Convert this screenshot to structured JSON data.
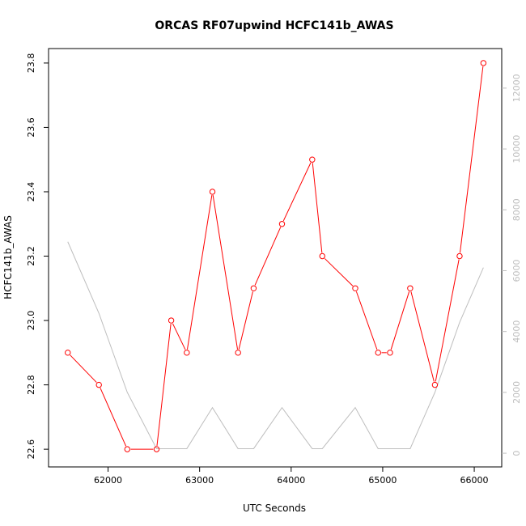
{
  "chart_data": {
    "type": "line",
    "title": "ORCAS RF07upwind HCFC141b_AWAS",
    "xlabel": "UTC Seconds",
    "ylabel": "HCFC141b_AWAS",
    "xlim": [
      61350,
      66300
    ],
    "ylim": [
      22.545,
      23.845
    ],
    "y2lim": [
      -450,
      13300
    ],
    "x_ticks": [
      62000,
      63000,
      64000,
      65000,
      66000
    ],
    "y_ticks": [
      22.6,
      22.8,
      23.0,
      23.2,
      23.4,
      23.6,
      23.8
    ],
    "y2_ticks": [
      0,
      2000,
      4000,
      6000,
      8000,
      10000,
      12000
    ],
    "x_tick_labels": [
      "62000",
      "63000",
      "64000",
      "65000",
      "66000"
    ],
    "y_tick_labels": [
      "22.6",
      "22.8",
      "23.0",
      "23.2",
      "23.4",
      "23.6",
      "23.8"
    ],
    "y2_tick_labels": [
      "0",
      "2000",
      "4000",
      "6000",
      "8000",
      "10000",
      "12000"
    ],
    "grid": false,
    "series": [
      {
        "axis": "left",
        "color": "#ff0000",
        "marker": "open-circle",
        "points": [
          [
            61560,
            22.9
          ],
          [
            61900,
            22.8
          ],
          [
            62210,
            22.6
          ],
          [
            62530,
            22.6
          ],
          [
            62690,
            23.0
          ],
          [
            62860,
            22.9
          ],
          [
            63140,
            23.4
          ],
          [
            63420,
            22.9
          ],
          [
            63590,
            23.1
          ],
          [
            63900,
            23.3
          ],
          [
            64230,
            23.5
          ],
          [
            64340,
            23.2
          ],
          [
            64700,
            23.1
          ],
          [
            64950,
            22.9
          ],
          [
            65080,
            22.9
          ],
          [
            65300,
            23.1
          ],
          [
            65570,
            22.8
          ],
          [
            65840,
            23.2
          ],
          [
            66100,
            23.8
          ]
        ]
      },
      {
        "axis": "right",
        "color": "#bebebe",
        "marker": "none",
        "points": [
          [
            61560,
            6950
          ],
          [
            61900,
            4600
          ],
          [
            62210,
            2000
          ],
          [
            62530,
            150
          ],
          [
            62690,
            150
          ],
          [
            62860,
            150
          ],
          [
            63140,
            1500
          ],
          [
            63420,
            150
          ],
          [
            63590,
            150
          ],
          [
            63900,
            1500
          ],
          [
            64230,
            150
          ],
          [
            64340,
            150
          ],
          [
            64700,
            1500
          ],
          [
            64950,
            150
          ],
          [
            65080,
            150
          ],
          [
            65300,
            150
          ],
          [
            65570,
            2000
          ],
          [
            65840,
            4300
          ],
          [
            66100,
            6100
          ]
        ]
      }
    ]
  }
}
